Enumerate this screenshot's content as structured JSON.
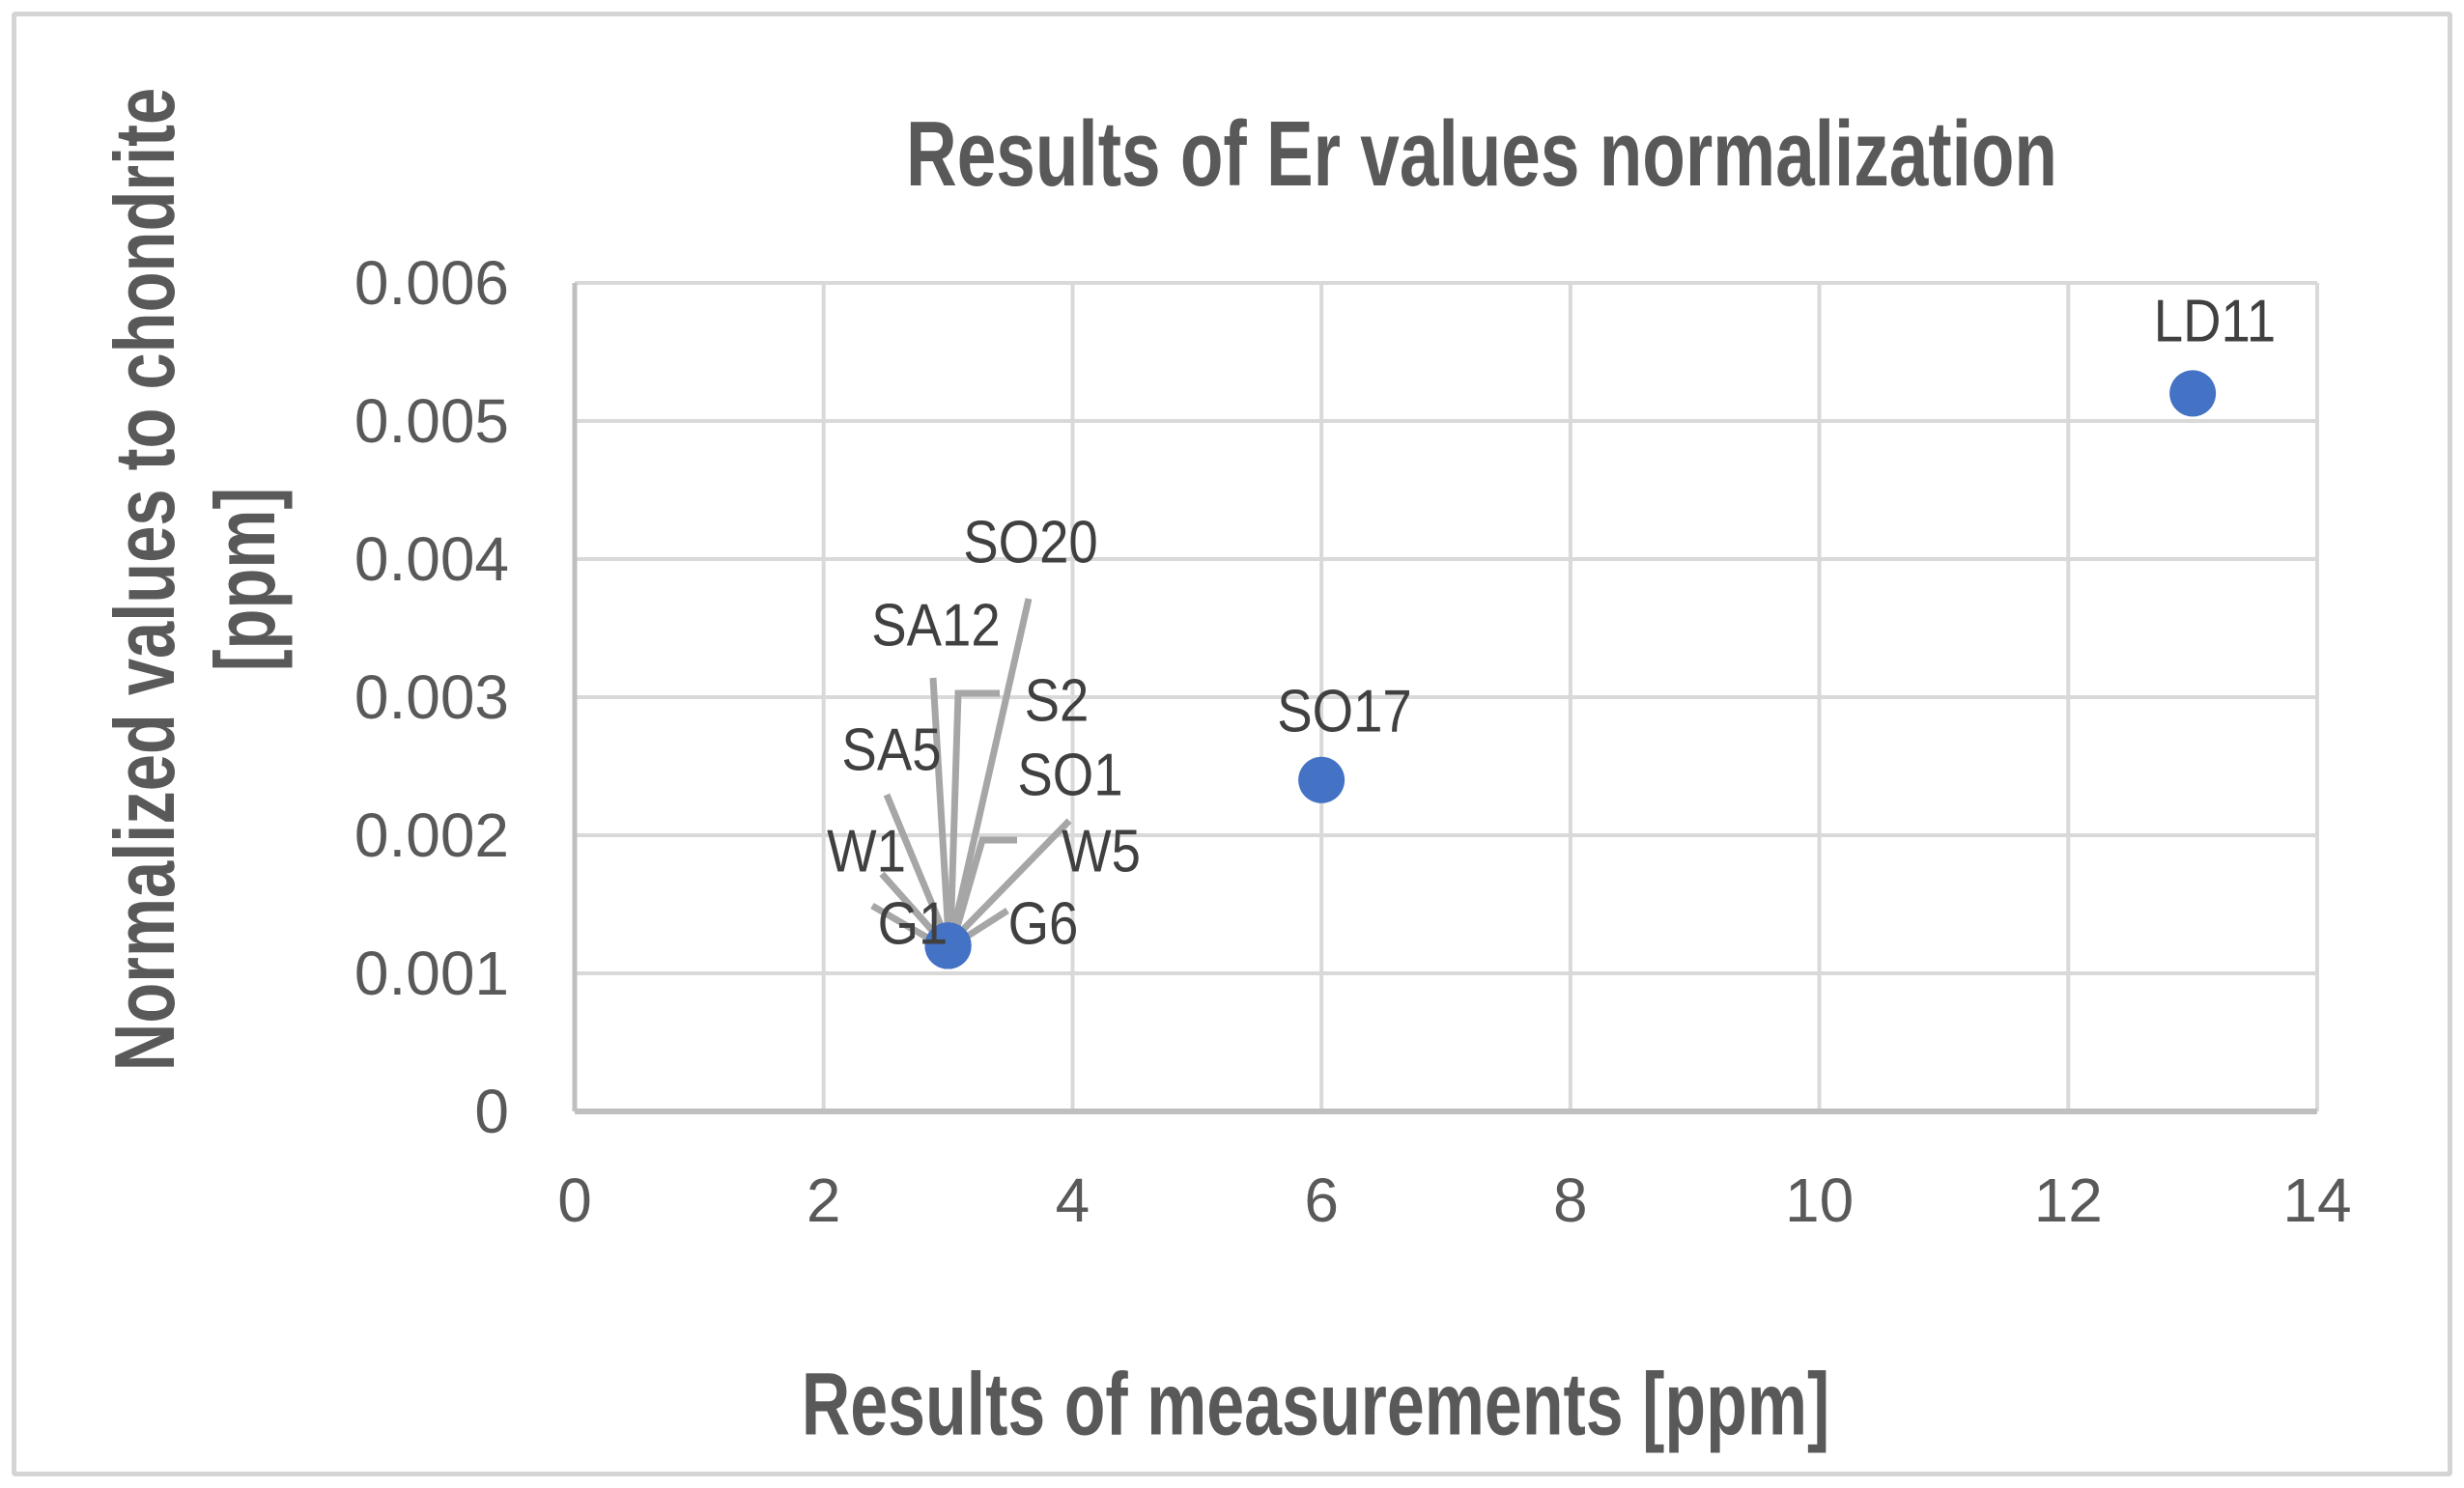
{
  "window": {
    "kind": "chart-figure",
    "background": "#ffffff",
    "border_color": "#d5d5d5"
  },
  "chart_data": {
    "type": "scatter",
    "title": "Results of Er values normalization",
    "xlabel": "Results of measurements [ppm]",
    "ylabel_lines": [
      "Normalized values to chondrite",
      "[ppm]"
    ],
    "xlim": [
      0,
      14
    ],
    "ylim": [
      0,
      0.006
    ],
    "x_tick_values": [
      0,
      2,
      4,
      6,
      8,
      10,
      12,
      14
    ],
    "x_tick_labels": [
      "0",
      "2",
      "4",
      "6",
      "8",
      "10",
      "12",
      "14"
    ],
    "y_tick_values": [
      0,
      0.001,
      0.002,
      0.003,
      0.004,
      0.005,
      0.006
    ],
    "y_tick_labels": [
      "0",
      "0.001",
      "0.002",
      "0.003",
      "0.004",
      "0.005",
      "0.006"
    ],
    "grid": true,
    "legend": "none",
    "series": [
      {
        "name": "Er normalized values",
        "marker": "circle",
        "marker_color": "#4472C4",
        "points": [
          {
            "label": "G1",
            "x": 3,
            "y": 0.0012
          },
          {
            "label": "W1",
            "x": 3,
            "y": 0.0012
          },
          {
            "label": "SA5",
            "x": 3,
            "y": 0.0012
          },
          {
            "label": "SA12",
            "x": 3,
            "y": 0.0012
          },
          {
            "label": "SO20",
            "x": 3,
            "y": 0.0012
          },
          {
            "label": "S2",
            "x": 3,
            "y": 0.0012
          },
          {
            "label": "SO1",
            "x": 3,
            "y": 0.0012
          },
          {
            "label": "W5",
            "x": 3,
            "y": 0.0012
          },
          {
            "label": "G6",
            "x": 3,
            "y": 0.0012
          },
          {
            "label": "SO17",
            "x": 6,
            "y": 0.0024
          },
          {
            "label": "LD11",
            "x": 13,
            "y": 0.0052
          }
        ]
      }
    ],
    "colors": {
      "gridline": "#d9d9d9",
      "axis_line": "#bfbfbf",
      "leader_line": "#a6a6a6",
      "title_text": "#595959",
      "tick_text": "#595959",
      "data_label_text": "#404040",
      "marker": "#4472C4"
    }
  }
}
